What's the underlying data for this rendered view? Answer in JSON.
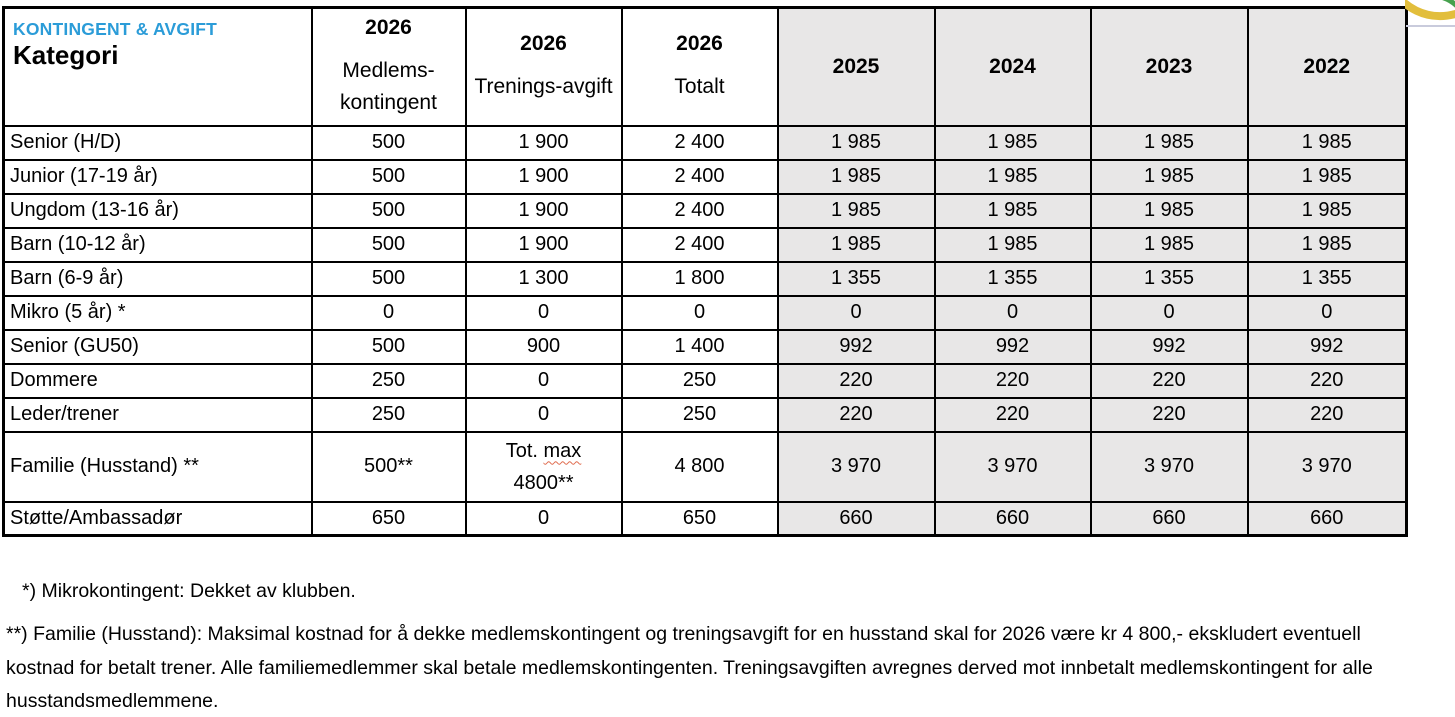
{
  "title": {
    "label": "KONTINGENT & AVGIFT",
    "category": "Kategori"
  },
  "columns": [
    {
      "year": "2026",
      "sub1": "Medlems-",
      "sub2": "kontingent"
    },
    {
      "year": "2026",
      "sub1": "Trenings-avgift"
    },
    {
      "year": "2026",
      "sub1": "Totalt"
    },
    {
      "year": "2025"
    },
    {
      "year": "2024"
    },
    {
      "year": "2023"
    },
    {
      "year": "2022"
    }
  ],
  "rows": [
    {
      "category": "Senior (H/D)",
      "values": [
        "500",
        "1 900",
        "2 400",
        "1 985",
        "1 985",
        "1 985",
        "1 985"
      ]
    },
    {
      "category": "Junior (17-19 år)",
      "values": [
        "500",
        "1 900",
        "2 400",
        "1 985",
        "1 985",
        "1 985",
        "1 985"
      ]
    },
    {
      "category": "Ungdom (13-16 år)",
      "values": [
        "500",
        "1 900",
        "2 400",
        "1 985",
        "1 985",
        "1 985",
        "1 985"
      ]
    },
    {
      "category": "Barn (10-12 år)",
      "values": [
        "500",
        "1 900",
        "2 400",
        "1 985",
        "1 985",
        "1 985",
        "1 985"
      ]
    },
    {
      "category": "Barn (6-9 år)",
      "values": [
        "500",
        "1 300",
        "1 800",
        "1 355",
        "1 355",
        "1 355",
        "1 355"
      ]
    },
    {
      "category": "Mikro (5 år) *",
      "values": [
        "0",
        "0",
        "0",
        "0",
        "0",
        "0",
        "0"
      ]
    },
    {
      "category": "Senior (GU50)",
      "values": [
        "500",
        "900",
        "1 400",
        "992",
        "992",
        "992",
        "992"
      ]
    },
    {
      "category": "Dommere",
      "values": [
        "250",
        "0",
        "250",
        "220",
        "220",
        "220",
        "220"
      ]
    },
    {
      "category": "Leder/trener",
      "values": [
        "250",
        "0",
        "250",
        "220",
        "220",
        "220",
        "220"
      ]
    },
    {
      "category": "Familie (Husstand) **",
      "values": [
        "500**",
        {
          "line1_pre": "Tot. ",
          "wavy": "max",
          "line2": "4800**"
        },
        "4 800",
        "3 970",
        "3 970",
        "3 970",
        "3 970"
      ]
    },
    {
      "category": "Støtte/Ambassadør",
      "values": [
        "650",
        "0",
        "650",
        "660",
        "660",
        "660",
        "660"
      ]
    }
  ],
  "footnotes": {
    "note1": "*) Mikrokontingent: Dekket av klubben.",
    "note2_lines": [
      "**) Familie (Husstand): Maksimal kostnad for å dekke medlemskontingent og treningsavgift for en husstand skal for 2026 være kr 4 800,- ekskludert eventuell",
      "kostnad for betalt trener. Alle familiemedlemmer skal betale medlemskontingenten. Treningsavgiften avregnes derved mot innbetalt medlemskontingent for alle",
      "husstandsmedlemmene."
    ]
  },
  "icons": {
    "logo": "club-logo-fragment"
  },
  "colors": {
    "accent_blue": "#2B9CD8",
    "row_gray": "#E8E7E7",
    "logo_yellow": "#E2BE3C",
    "logo_green": "#47A14E",
    "squiggle_red": "#E06C4F"
  }
}
